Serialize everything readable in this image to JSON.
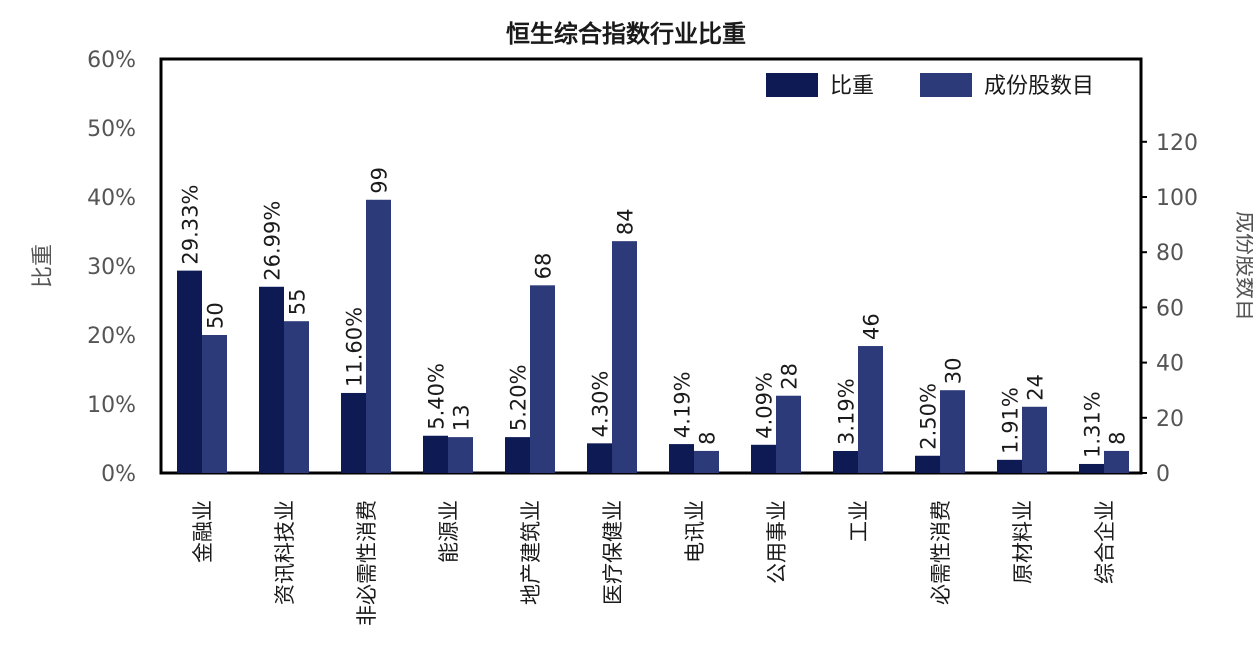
{
  "chart_data": {
    "type": "bar",
    "title": "恒生综合指数行业比重",
    "categories": [
      "金融业",
      "资讯科技业",
      "非必需性消费",
      "能源业",
      "地产建筑业",
      "医疗保健业",
      "电讯业",
      "公用事业",
      "工业",
      "必需性消费",
      "原材料业",
      "综合企业"
    ],
    "series": [
      {
        "name": "比重",
        "axis": "left",
        "values": [
          29.33,
          26.99,
          11.6,
          5.4,
          5.2,
          4.3,
          4.19,
          4.09,
          3.19,
          2.5,
          1.91,
          1.31
        ],
        "labels": [
          "29.33%",
          "26.99%",
          "11.60%",
          "5.40%",
          "5.20%",
          "4.30%",
          "4.19%",
          "4.09%",
          "3.19%",
          "2.50%",
          "1.91%",
          "1.31%"
        ],
        "color": "#0d1a54"
      },
      {
        "name": "成份股数目",
        "axis": "right",
        "values": [
          50,
          55,
          99,
          13,
          68,
          84,
          8,
          28,
          46,
          30,
          24,
          8
        ],
        "labels": [
          "50",
          "55",
          "99",
          "13",
          "68",
          "84",
          "8",
          "28",
          "46",
          "30",
          "24",
          "8"
        ],
        "color": "#2c3a7a"
      }
    ],
    "y_left": {
      "label": "比重",
      "range": [
        0,
        60
      ],
      "ticks": [
        0,
        10,
        20,
        30,
        40,
        50,
        60
      ],
      "tick_labels": [
        "0%",
        "10%",
        "20%",
        "30%",
        "40%",
        "50%",
        "60%"
      ]
    },
    "y_right": {
      "label": "成份股数目",
      "range": [
        0,
        150
      ],
      "ticks": [
        0,
        20,
        40,
        60,
        80,
        100,
        120
      ],
      "tick_labels": [
        "0",
        "20",
        "40",
        "60",
        "80",
        "100",
        "120"
      ]
    },
    "legend": {
      "position": "top-right"
    },
    "grid": false
  }
}
